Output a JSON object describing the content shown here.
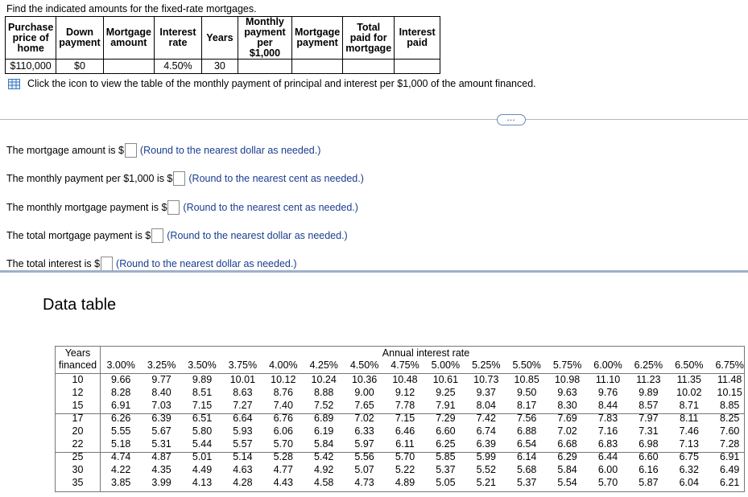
{
  "instruction": "Find the indicated amounts for the fixed-rate mortgages.",
  "mortgage_table": {
    "headers": [
      [
        "Purchase",
        "price of",
        "home"
      ],
      [
        "Down",
        "payment"
      ],
      [
        "Mortgage",
        "amount"
      ],
      [
        "Interest",
        "rate"
      ],
      [
        "Years"
      ],
      [
        "Monthly",
        "payment",
        "per $1,000"
      ],
      [
        "Mortgage",
        "payment"
      ],
      [
        "Total",
        "paid for",
        "mortgage"
      ],
      [
        "Interest",
        "paid"
      ]
    ],
    "row": [
      "$110,000",
      "$0",
      "",
      "4.50%",
      "30",
      "",
      "",
      "",
      ""
    ]
  },
  "click_text": "Click the icon to view the table of the monthly payment of principal and interest per $1,000 of the amount financed.",
  "ellipsis": "…",
  "questions": [
    {
      "prefix": "The mortgage amount is $",
      "hint": "(Round to the nearest dollar as needed.)"
    },
    {
      "prefix": "The monthly payment per $1,000 is $",
      "hint": "(Round to the nearest cent as needed.)"
    },
    {
      "prefix": "The monthly mortgage payment is $",
      "hint": "(Round to the nearest cent as needed.)"
    },
    {
      "prefix": "The total mortgage payment is $",
      "hint": "(Round to the nearest dollar as needed.)"
    },
    {
      "prefix": "The total interest is $",
      "hint": "(Round to the nearest dollar as needed.)"
    }
  ],
  "data_table": {
    "title": "Data table",
    "years_header": [
      "Years",
      "financed"
    ],
    "rate_header": "Annual interest rate",
    "rates": [
      "3.00%",
      "3.25%",
      "3.50%",
      "3.75%",
      "4.00%",
      "4.25%",
      "4.50%",
      "4.75%",
      "5.00%",
      "5.25%",
      "5.50%",
      "5.75%",
      "6.00%",
      "6.25%",
      "6.50%",
      "6.75%"
    ],
    "rows": [
      {
        "years": "10",
        "values": [
          "9.66",
          "9.77",
          "9.89",
          "10.01",
          "10.12",
          "10.24",
          "10.36",
          "10.48",
          "10.61",
          "10.73",
          "10.85",
          "10.98",
          "11.10",
          "11.23",
          "11.35",
          "11.48"
        ]
      },
      {
        "years": "12",
        "values": [
          "8.28",
          "8.40",
          "8.51",
          "8.63",
          "8.76",
          "8.88",
          "9.00",
          "9.12",
          "9.25",
          "9.37",
          "9.50",
          "9.63",
          "9.76",
          "9.89",
          "10.02",
          "10.15"
        ]
      },
      {
        "years": "15",
        "values": [
          "6.91",
          "7.03",
          "7.15",
          "7.27",
          "7.40",
          "7.52",
          "7.65",
          "7.78",
          "7.91",
          "8.04",
          "8.17",
          "8.30",
          "8.44",
          "8.57",
          "8.71",
          "8.85"
        ]
      },
      {
        "years": "17",
        "values": [
          "6.26",
          "6.39",
          "6.51",
          "6.64",
          "6.76",
          "6.89",
          "7.02",
          "7.15",
          "7.29",
          "7.42",
          "7.56",
          "7.69",
          "7.83",
          "7.97",
          "8.11",
          "8.25"
        ]
      },
      {
        "years": "20",
        "values": [
          "5.55",
          "5.67",
          "5.80",
          "5.93",
          "6.06",
          "6.19",
          "6.33",
          "6.46",
          "6.60",
          "6.74",
          "6.88",
          "7.02",
          "7.16",
          "7.31",
          "7.46",
          "7.60"
        ]
      },
      {
        "years": "22",
        "values": [
          "5.18",
          "5.31",
          "5.44",
          "5.57",
          "5.70",
          "5.84",
          "5.97",
          "6.11",
          "6.25",
          "6.39",
          "6.54",
          "6.68",
          "6.83",
          "6.98",
          "7.13",
          "7.28"
        ]
      },
      {
        "years": "25",
        "values": [
          "4.74",
          "4.87",
          "5.01",
          "5.14",
          "5.28",
          "5.42",
          "5.56",
          "5.70",
          "5.85",
          "5.99",
          "6.14",
          "6.29",
          "6.44",
          "6.60",
          "6.75",
          "6.91"
        ]
      },
      {
        "years": "30",
        "values": [
          "4.22",
          "4.35",
          "4.49",
          "4.63",
          "4.77",
          "4.92",
          "5.07",
          "5.22",
          "5.37",
          "5.52",
          "5.68",
          "5.84",
          "6.00",
          "6.16",
          "6.32",
          "6.49"
        ]
      },
      {
        "years": "35",
        "values": [
          "3.85",
          "3.99",
          "4.13",
          "4.28",
          "4.43",
          "4.58",
          "4.73",
          "4.89",
          "5.05",
          "5.21",
          "5.37",
          "5.54",
          "5.70",
          "5.87",
          "6.04",
          "6.21"
        ]
      }
    ]
  }
}
